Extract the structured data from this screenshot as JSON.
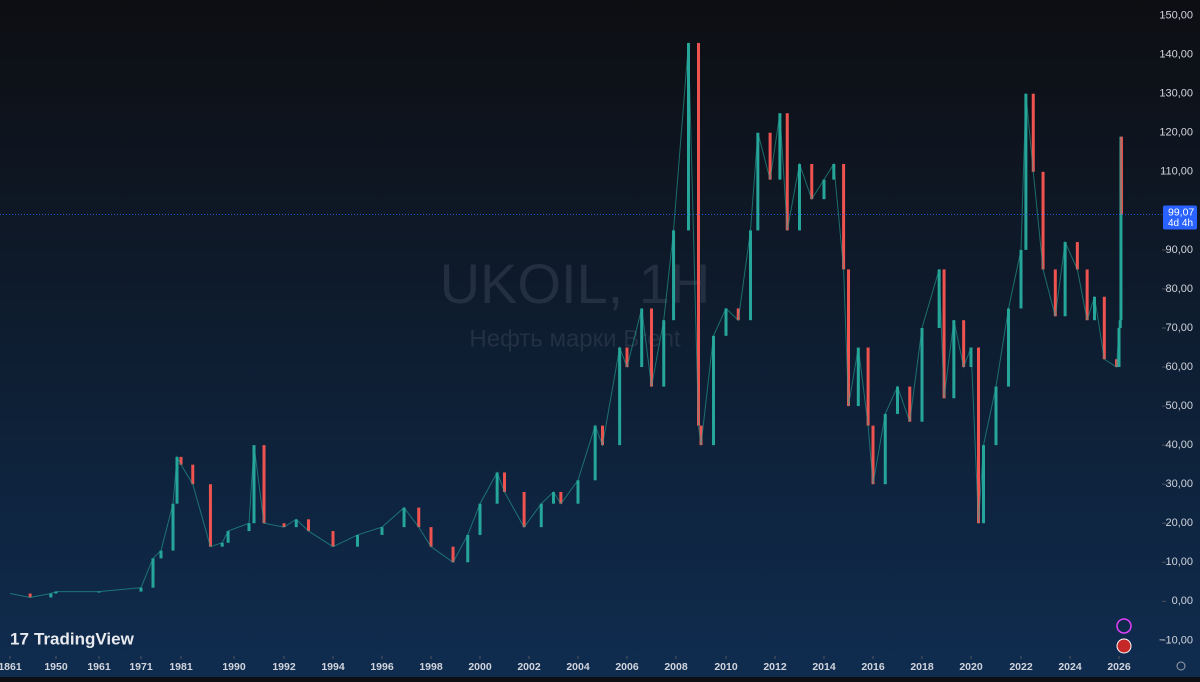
{
  "chart_data": {
    "type": "candle",
    "title": "UKOIL, 1H",
    "subtitle": "Нефть марки Brent",
    "brand": "TradingView",
    "up_color": "#26a69a",
    "down_color": "#ef5350",
    "x": [
      1861,
      1900,
      1940,
      1950,
      1961,
      1971,
      1974,
      1976,
      1979,
      1980,
      1981,
      1983,
      1986,
      1988,
      1989,
      1990.6,
      1990.8,
      1991.2,
      1992,
      1992.5,
      1993,
      1994,
      1995,
      1996,
      1996.9,
      1997.5,
      1998,
      1998.9,
      1999.5,
      2000,
      2000.7,
      2001,
      2001.8,
      2002.5,
      2003,
      2003.3,
      2004,
      2004.7,
      2005,
      2005.7,
      2006,
      2006.6,
      2007,
      2007.5,
      2007.9,
      2008.5,
      2008.9,
      2009,
      2009.5,
      2010,
      2010.5,
      2011,
      2011.3,
      2011.8,
      2012.2,
      2012.5,
      2013,
      2013.5,
      2014,
      2014.4,
      2014.8,
      2015,
      2015.4,
      2015.8,
      2016,
      2016.5,
      2017,
      2017.5,
      2018,
      2018.7,
      2018.9,
      2019.3,
      2019.7,
      2020,
      2020.3,
      2020.5,
      2021,
      2021.5,
      2022,
      2022.2,
      2022.5,
      2022.9,
      2023.4,
      2023.8,
      2024.3,
      2024.7,
      2025,
      2025.4,
      2025.9,
      2026,
      2026.05,
      2026.08,
      2026.1
    ],
    "values": [
      2,
      1,
      2,
      2.5,
      2.5,
      3.5,
      11,
      13,
      25,
      37,
      35,
      30,
      14,
      15,
      18,
      20,
      40,
      20,
      19,
      21,
      18,
      14,
      17,
      19,
      24,
      19,
      14,
      10,
      17,
      25,
      33,
      28,
      19,
      25,
      28,
      25,
      31,
      45,
      40,
      65,
      60,
      75,
      55,
      72,
      95,
      143,
      45,
      40,
      68,
      75,
      72,
      95,
      120,
      108,
      125,
      95,
      112,
      103,
      108,
      112,
      85,
      50,
      65,
      45,
      30,
      48,
      55,
      46,
      70,
      85,
      52,
      72,
      60,
      65,
      20,
      40,
      55,
      75,
      90,
      130,
      110,
      85,
      73,
      92,
      85,
      72,
      78,
      62,
      60,
      70,
      72,
      119,
      99.07
    ],
    "last_price": {
      "value": 99.07,
      "label": "99,07"
    },
    "countdown": "4d 4h",
    "ylim": [
      -14,
      154
    ],
    "yticks": [
      {
        "value": -10,
        "label": "−10,00"
      },
      {
        "value": 0,
        "label": "0,00"
      },
      {
        "value": 10,
        "label": "10,00"
      },
      {
        "value": 20,
        "label": "20,00"
      },
      {
        "value": 30,
        "label": "30,00"
      },
      {
        "value": 40,
        "label": "40,00"
      },
      {
        "value": 50,
        "label": "50,00"
      },
      {
        "value": 60,
        "label": "60,00"
      },
      {
        "value": 70,
        "label": "70,00"
      },
      {
        "value": 80,
        "label": "80,00"
      },
      {
        "value": 90,
        "label": "90,00"
      },
      {
        "value": 110,
        "label": "110,00"
      },
      {
        "value": 120,
        "label": "120,00"
      },
      {
        "value": 130,
        "label": "130,00"
      },
      {
        "value": 140,
        "label": "140,00"
      },
      {
        "value": 150,
        "label": "150,00"
      }
    ],
    "xticks": [
      1861,
      1950,
      1961,
      1971,
      1981,
      1990,
      1992,
      1994,
      1996,
      1998,
      2000,
      2002,
      2004,
      2006,
      2008,
      2010,
      2012,
      2014,
      2016,
      2018,
      2020,
      2022,
      2024,
      2026
    ]
  }
}
